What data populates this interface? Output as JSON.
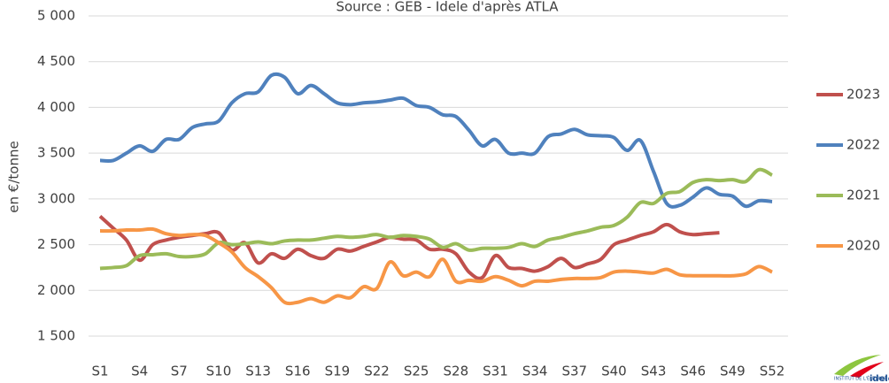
{
  "chart_data": {
    "type": "line",
    "title": "Source : GEB - Idele d'après ATLA",
    "y_label": "en €/tonne",
    "categories": [
      "S1",
      null,
      null,
      "S4",
      null,
      null,
      "S7",
      null,
      null,
      "S10",
      null,
      null,
      "S13",
      null,
      null,
      "S16",
      null,
      null,
      "S19",
      null,
      null,
      "S22",
      null,
      null,
      "S25",
      null,
      null,
      "S28",
      null,
      null,
      "S31",
      null,
      null,
      "S34",
      null,
      null,
      "S37",
      null,
      null,
      "S40",
      null,
      null,
      "S43",
      null,
      null,
      "S46",
      null,
      null,
      "S49",
      null,
      null,
      "S52"
    ],
    "series": [
      {
        "name": "2023",
        "color": "#c0504d",
        "values": [
          2810,
          2680,
          2550,
          2330,
          2500,
          2550,
          2580,
          2600,
          2620,
          2630,
          2440,
          2520,
          2300,
          2400,
          2350,
          2450,
          2380,
          2350,
          2450,
          2430,
          2480,
          2530,
          2580,
          2560,
          2550,
          2450,
          2450,
          2400,
          2200,
          2140,
          2380,
          2250,
          2240,
          2210,
          2260,
          2350,
          2250,
          2290,
          2340,
          2500,
          2550,
          2600,
          2640,
          2720,
          2640,
          2610,
          2620,
          2630,
          null,
          null,
          null,
          null
        ]
      },
      {
        "name": "2022",
        "color": "#4f81bd",
        "values": [
          3420,
          3420,
          3500,
          3580,
          3520,
          3650,
          3650,
          3780,
          3820,
          3850,
          4050,
          4150,
          4170,
          4350,
          4330,
          4150,
          4240,
          4150,
          4050,
          4030,
          4050,
          4060,
          4080,
          4100,
          4020,
          4000,
          3920,
          3900,
          3750,
          3580,
          3650,
          3500,
          3500,
          3500,
          3680,
          3710,
          3760,
          3700,
          3690,
          3670,
          3530,
          3640,
          3300,
          2950,
          2930,
          3020,
          3120,
          3050,
          3030,
          2920,
          2980,
          2970
        ]
      },
      {
        "name": "2021",
        "color": "#9bbb59",
        "values": [
          2240,
          2250,
          2270,
          2380,
          2390,
          2400,
          2370,
          2370,
          2400,
          2520,
          2500,
          2510,
          2530,
          2510,
          2540,
          2550,
          2550,
          2570,
          2590,
          2580,
          2590,
          2610,
          2580,
          2600,
          2590,
          2560,
          2470,
          2510,
          2440,
          2460,
          2460,
          2470,
          2510,
          2480,
          2550,
          2580,
          2620,
          2650,
          2690,
          2710,
          2800,
          2960,
          2950,
          3060,
          3080,
          3180,
          3210,
          3200,
          3210,
          3190,
          3320,
          3260
        ]
      },
      {
        "name": "2020",
        "color": "#f79646",
        "values": [
          2650,
          2650,
          2660,
          2660,
          2670,
          2620,
          2600,
          2610,
          2600,
          2520,
          2420,
          2250,
          2150,
          2030,
          1870,
          1870,
          1910,
          1870,
          1940,
          1920,
          2040,
          2020,
          2310,
          2160,
          2200,
          2150,
          2340,
          2100,
          2110,
          2100,
          2150,
          2110,
          2050,
          2100,
          2100,
          2120,
          2130,
          2130,
          2140,
          2200,
          2210,
          2200,
          2190,
          2230,
          2170,
          2160,
          2160,
          2160,
          2160,
          2180,
          2260,
          2200
        ]
      }
    ],
    "ylim": [
      1500,
      5000
    ],
    "yticks": [
      {
        "value": 1500,
        "label": "1 500"
      },
      {
        "value": 2000,
        "label": "2 000"
      },
      {
        "value": 2500,
        "label": "2 500"
      },
      {
        "value": 3000,
        "label": "3 000"
      },
      {
        "value": 3500,
        "label": "3 500"
      },
      {
        "value": 4000,
        "label": "4 000"
      },
      {
        "value": 4500,
        "label": "4 500"
      },
      {
        "value": 5000,
        "label": "5 000"
      }
    ],
    "grid": true,
    "legend": "right"
  },
  "logo": {
    "small_text": "INSTITUT DE L'ÉLEVAGE",
    "name": "idele"
  }
}
